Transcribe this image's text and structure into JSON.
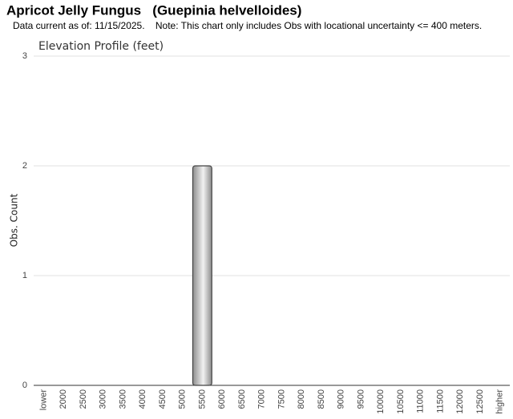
{
  "chart_data": {
    "type": "bar",
    "title": "Apricot Jelly Fungus   (Guepinia helvelloides)",
    "subtitle": "Data current as of: 11/15/2025.    Note: This chart only includes Obs with locational uncertainty <= 400 meters.",
    "chart_title": "Elevation Profile (feet)",
    "y_label": "Obs. Count",
    "categories": [
      "lower",
      "2000",
      "2500",
      "3000",
      "3500",
      "4000",
      "4500",
      "5000",
      "5500",
      "6000",
      "6500",
      "7000",
      "7500",
      "8000",
      "8500",
      "9000",
      "9500",
      "10000",
      "10500",
      "11000",
      "11500",
      "12000",
      "12500",
      "higher"
    ],
    "values": [
      0,
      0,
      0,
      0,
      0,
      0,
      0,
      0,
      2,
      0,
      0,
      0,
      0,
      0,
      0,
      0,
      0,
      0,
      0,
      0,
      0,
      0,
      0,
      0
    ],
    "color": "#8c8c8c",
    "ylim": [
      0,
      3
    ],
    "yticks": [
      0,
      1,
      2,
      3
    ],
    "grid": true
  }
}
